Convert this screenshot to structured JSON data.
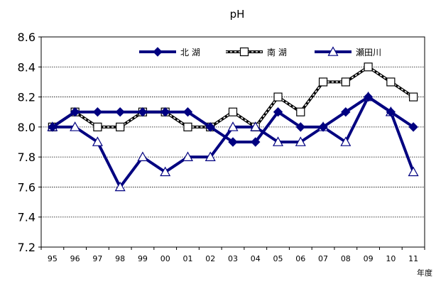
{
  "chart_data": {
    "type": "line",
    "title": "pH",
    "xlabel": "年度",
    "ylabel": "",
    "ylim": [
      7.2,
      8.6
    ],
    "yticks": [
      "7.2",
      "7.4",
      "7.6",
      "7.8",
      "8.0",
      "8.2",
      "8.4",
      "8.6"
    ],
    "categories": [
      "95",
      "96",
      "97",
      "98",
      "99",
      "00",
      "01",
      "02",
      "03",
      "04",
      "05",
      "06",
      "07",
      "08",
      "09",
      "10",
      "11"
    ],
    "grid": "horizontal",
    "legend_position": "top",
    "series": [
      {
        "name": "北 湖",
        "marker": "diamond",
        "color": "#000080",
        "values": [
          8.0,
          8.1,
          8.1,
          8.1,
          8.1,
          8.1,
          8.1,
          8.0,
          7.9,
          7.9,
          8.1,
          8.0,
          8.0,
          8.1,
          8.2,
          8.1,
          8.0
        ]
      },
      {
        "name": "南 湖",
        "marker": "square",
        "color": "#000000",
        "values": [
          8.0,
          8.1,
          8.0,
          8.0,
          8.1,
          8.1,
          8.0,
          8.0,
          8.1,
          8.0,
          8.2,
          8.1,
          8.3,
          8.3,
          8.4,
          8.3,
          8.2
        ]
      },
      {
        "name": "瀬田川",
        "marker": "triangle",
        "color": "#000080",
        "values": [
          8.0,
          8.0,
          7.9,
          7.6,
          7.8,
          7.7,
          7.8,
          7.8,
          8.0,
          8.0,
          7.9,
          7.9,
          8.0,
          7.9,
          8.2,
          8.1,
          7.7
        ]
      }
    ]
  }
}
